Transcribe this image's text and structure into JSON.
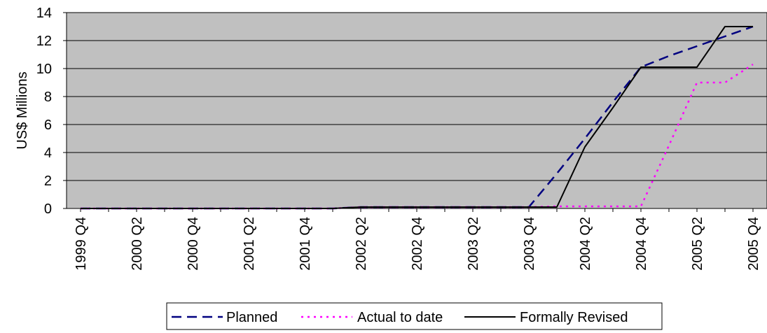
{
  "chart_data": {
    "type": "line",
    "title": "",
    "xlabel": "",
    "ylabel": "US$ Millions",
    "ylim": [
      0,
      14
    ],
    "yticks": [
      0,
      2,
      4,
      6,
      8,
      10,
      12,
      14
    ],
    "categories": [
      "1999 Q4",
      "2000 Q1",
      "2000 Q2",
      "2000 Q3",
      "2000 Q4",
      "2001 Q1",
      "2001 Q2",
      "2001 Q3",
      "2001 Q4",
      "2002 Q1",
      "2002 Q2",
      "2002 Q3",
      "2002 Q4",
      "2003 Q1",
      "2003 Q2",
      "2003 Q3",
      "2003 Q4",
      "2004 Q1",
      "2004 Q2",
      "2004 Q3",
      "2004 Q4",
      "2005 Q1",
      "2005 Q2",
      "2005 Q3",
      "2005 Q4"
    ],
    "tick_labels": [
      "1999 Q4",
      "2000 Q2",
      "2000 Q4",
      "2001 Q2",
      "2001 Q4",
      "2002 Q2",
      "2002 Q4",
      "2003 Q2",
      "2003 Q4",
      "2004 Q2",
      "2004 Q4",
      "2005 Q2",
      "2005 Q4"
    ],
    "plot_background": "#c0c0c0",
    "grid": true,
    "legend_position": "bottom",
    "series": [
      {
        "name": "Planned",
        "color": "#000080",
        "style": "dashed",
        "values": [
          0,
          0,
          0,
          0,
          0,
          0,
          0,
          0,
          0,
          0,
          0.1,
          0.1,
          0.1,
          0.1,
          0.1,
          0.1,
          0.1,
          2.5,
          5.0,
          7.6,
          10.1,
          10.9,
          11.6,
          12.3,
          13.0
        ]
      },
      {
        "name": "Actual to date",
        "color": "#ff00ff",
        "style": "dotted",
        "values": [
          0,
          0,
          0,
          0,
          0,
          0,
          0,
          0,
          0,
          0,
          0.1,
          0.1,
          0.1,
          0.1,
          0.1,
          0.1,
          0.1,
          0.15,
          0.15,
          0.15,
          0.15,
          4.5,
          9.0,
          9.0,
          10.3
        ]
      },
      {
        "name": "Formally Revised",
        "color": "#000000",
        "style": "solid",
        "values": [
          0,
          0,
          0,
          0,
          0,
          0,
          0,
          0,
          0,
          0,
          0.1,
          0.1,
          0.1,
          0.1,
          0.1,
          0.1,
          0.1,
          0.1,
          4.4,
          7.2,
          10.1,
          10.1,
          10.1,
          13.0,
          13.0
        ]
      }
    ]
  }
}
